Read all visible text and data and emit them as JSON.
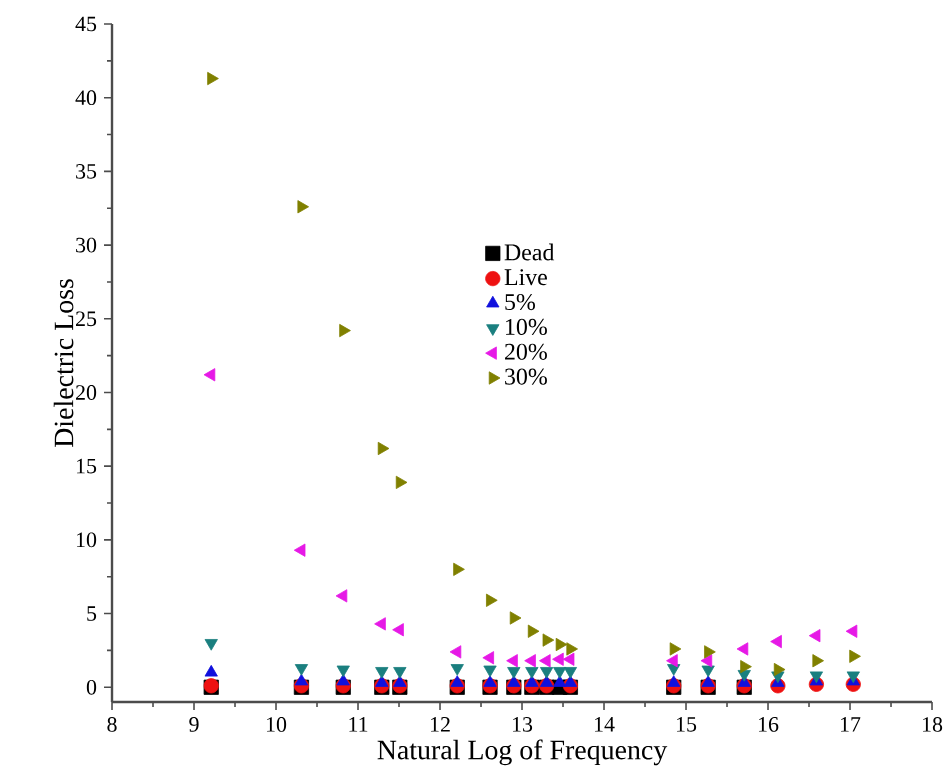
{
  "chart_data": {
    "type": "scatter",
    "xlabel": "Natural Log of Frequency",
    "ylabel": "Dielectric Loss",
    "x": [
      9.21,
      10.31,
      10.82,
      11.29,
      11.51,
      12.21,
      12.61,
      12.9,
      13.12,
      13.3,
      13.46,
      13.59,
      14.85,
      15.27,
      15.71,
      16.12,
      16.59,
      17.04
    ],
    "series": [
      {
        "name": "Dead",
        "color": "#000000",
        "marker": "square",
        "values": [
          0,
          0,
          0,
          0,
          0,
          0,
          0,
          0,
          0,
          0,
          0,
          0,
          0,
          0,
          0,
          null,
          null,
          null
        ]
      },
      {
        "name": "Live",
        "color": "#ee1111",
        "marker": "circle",
        "values": [
          0.1,
          0.1,
          0.1,
          0.1,
          0.1,
          0.1,
          0.1,
          0.1,
          0.1,
          0.1,
          null,
          0.1,
          0.1,
          0.1,
          0.1,
          0.1,
          0.2,
          0.2
        ]
      },
      {
        "name": "5%",
        "color": "#1010dd",
        "marker": "triangle",
        "values": [
          1.0,
          0.4,
          0.4,
          0.3,
          0.3,
          0.3,
          0.3,
          0.3,
          0.3,
          0.3,
          0.3,
          0.3,
          0.3,
          0.3,
          0.3,
          0.3,
          0.4,
          0.4
        ]
      },
      {
        "name": "10%",
        "color": "#1a7f7f",
        "marker": "triangle-down",
        "values": [
          3.0,
          1.3,
          1.2,
          1.1,
          1.1,
          1.3,
          1.2,
          1.1,
          1.1,
          1.1,
          1.1,
          1.1,
          1.3,
          1.2,
          0.9,
          0.8,
          0.8,
          0.8
        ]
      },
      {
        "name": "20%",
        "color": "#e619e6",
        "marker": "triangle-left",
        "values": [
          21.2,
          9.3,
          6.2,
          4.3,
          3.9,
          2.4,
          2.0,
          1.8,
          1.8,
          1.8,
          1.9,
          1.9,
          1.8,
          1.8,
          2.6,
          3.1,
          3.5,
          3.8
        ]
      },
      {
        "name": "30%",
        "color": "#808000",
        "marker": "triangle-right",
        "values": [
          41.3,
          32.6,
          24.2,
          16.2,
          13.9,
          8.0,
          5.9,
          4.7,
          3.8,
          3.2,
          2.9,
          2.6,
          2.6,
          2.4,
          1.4,
          1.2,
          1.8,
          2.1
        ]
      }
    ],
    "xlim": [
      8,
      18
    ],
    "ylim": [
      -1,
      45
    ],
    "xticks": [
      8,
      9,
      10,
      11,
      12,
      13,
      14,
      15,
      16,
      17,
      18
    ],
    "yticks": [
      0,
      5,
      10,
      15,
      20,
      25,
      30,
      35,
      40,
      45
    ],
    "grid": false,
    "legend": "center"
  }
}
